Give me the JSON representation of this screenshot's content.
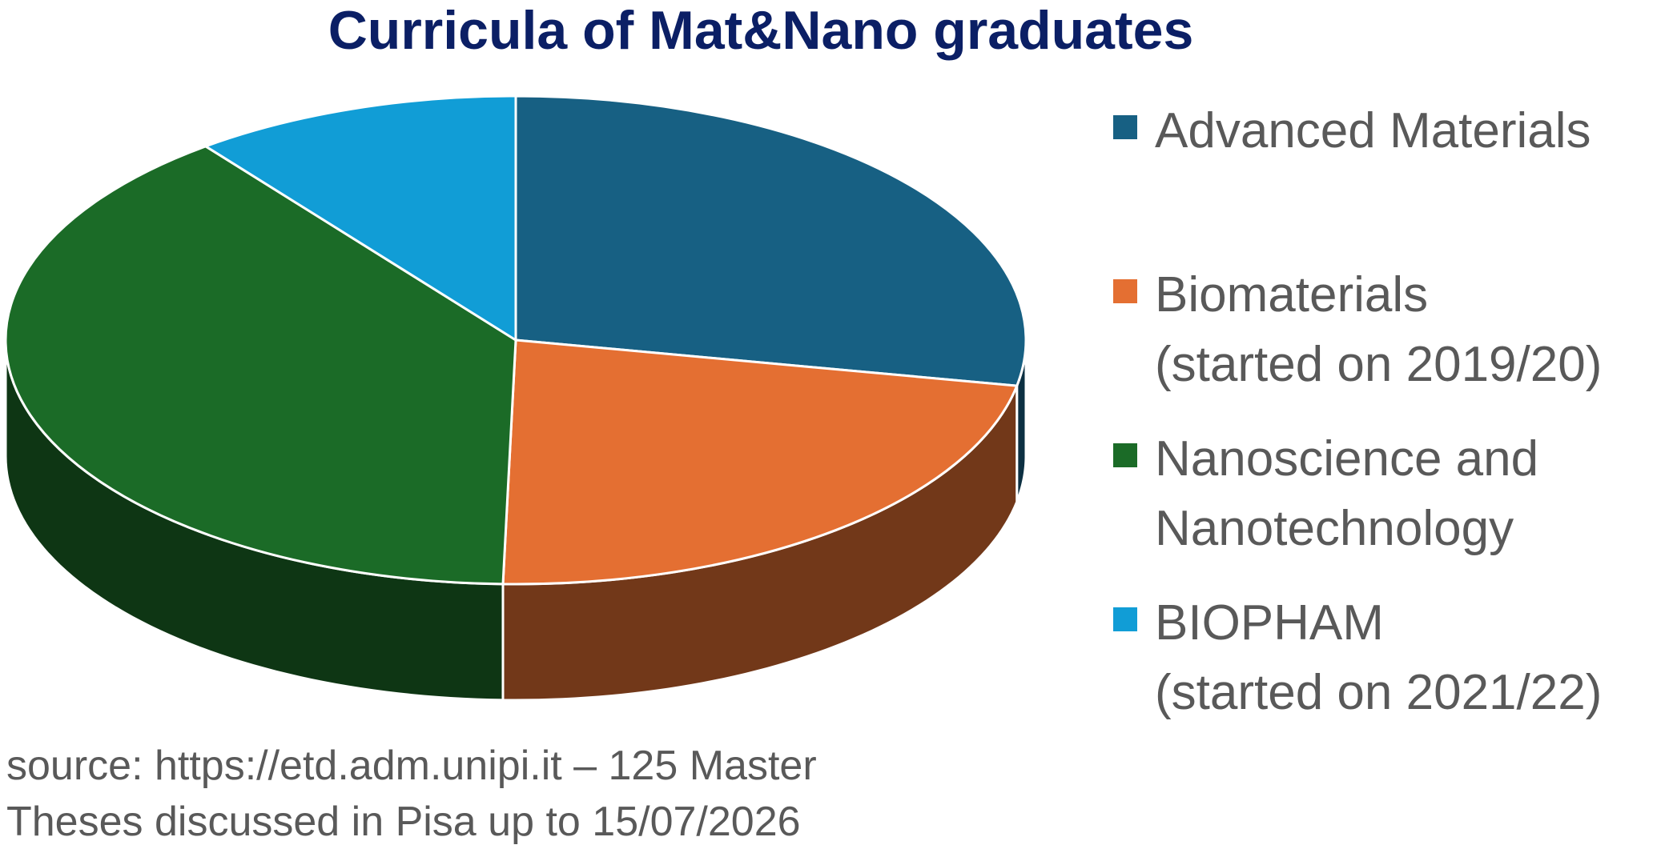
{
  "chart_data": {
    "type": "pie",
    "title": "Curricula of Mat&Nano graduates",
    "categories": [
      "Advanced Materials",
      "Biomaterials\n(started on 2019/20)",
      "Nanoscience and\nNanotechnology",
      "BIOPHAM\n(started on 2021/22)"
    ],
    "values": [
      35,
      28,
      49,
      13
    ],
    "colors": [
      "#176083",
      "#e46f32",
      "#1b6b27",
      "#119dd6"
    ],
    "note": "source: https://etd.adm.unipi.it – 125 Master\nTheses discussed in Pisa up to 15/07/2026"
  }
}
